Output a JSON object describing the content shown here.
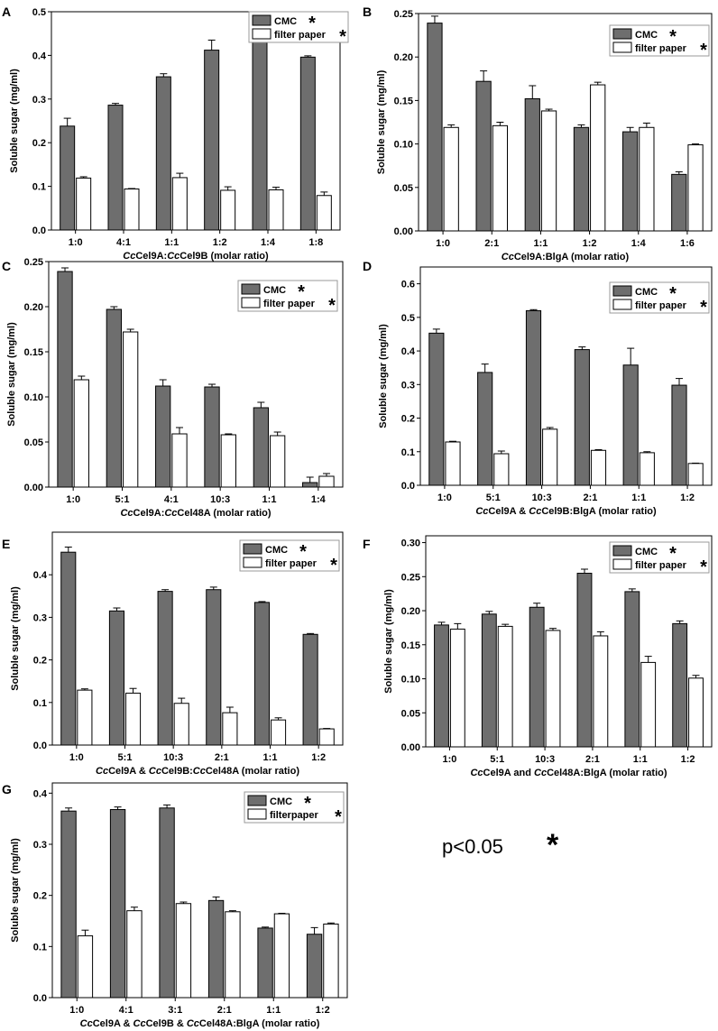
{
  "colors": {
    "cmc": "#6e6e6e",
    "filter": "#ffffff",
    "axis": "#000000"
  },
  "note": {
    "text": "p<0.05",
    "star": "*"
  },
  "chart_data": [
    {
      "panel": "A",
      "type": "bar",
      "categories": [
        "1:0",
        "4:1",
        "1:1",
        "1:2",
        "1:4",
        "1:8"
      ],
      "series": [
        {
          "name": "CMC",
          "marker": "*",
          "values": [
            0.238,
            0.286,
            0.351,
            0.412,
            0.456,
            0.396
          ],
          "errors": [
            0.018,
            0.004,
            0.007,
            0.023,
            0.002,
            0.003
          ]
        },
        {
          "name": "filter paper",
          "marker": "*",
          "values": [
            0.119,
            0.094,
            0.12,
            0.091,
            0.092,
            0.079
          ],
          "errors": [
            0.003,
            0.001,
            0.01,
            0.008,
            0.006,
            0.008
          ]
        }
      ],
      "xlabel_parts": [
        {
          "t": "Cc",
          "i": true
        },
        {
          "t": "Cel9A:",
          "i": false
        },
        {
          "t": "Cc",
          "i": true
        },
        {
          "t": "Cel9B (molar ratio)",
          "i": false
        }
      ],
      "ylabel": "Soluble sugar (mg/ml)",
      "ylim": [
        0,
        0.5
      ],
      "yticks": [
        "0.0",
        "0.1",
        "0.2",
        "0.3",
        "0.4",
        "0.5"
      ],
      "legend_position": "top-right"
    },
    {
      "panel": "B",
      "type": "bar",
      "categories": [
        "1:0",
        "2:1",
        "1:1",
        "1:2",
        "1:4",
        "1:6"
      ],
      "series": [
        {
          "name": "CMC",
          "marker": "*",
          "values": [
            0.239,
            0.172,
            0.152,
            0.119,
            0.114,
            0.065
          ],
          "errors": [
            0.008,
            0.012,
            0.015,
            0.003,
            0.005,
            0.003
          ]
        },
        {
          "name": "filter paper",
          "marker": "*",
          "values": [
            0.119,
            0.121,
            0.138,
            0.168,
            0.119,
            0.099
          ],
          "errors": [
            0.003,
            0.004,
            0.002,
            0.003,
            0.005,
            0.001
          ]
        }
      ],
      "xlabel_parts": [
        {
          "t": "Cc",
          "i": true
        },
        {
          "t": "Cel9A:BlgA (molar ratio)",
          "i": false
        }
      ],
      "ylabel": "Soluble sugar (mg/ml)",
      "ylim": [
        0,
        0.25
      ],
      "yticks": [
        "0.00",
        "0.05",
        "0.10",
        "0.15",
        "0.20",
        "0.25"
      ],
      "legend_position": "top-right"
    },
    {
      "panel": "C",
      "type": "bar",
      "categories": [
        "1:0",
        "5:1",
        "4:1",
        "10:3",
        "1:1",
        "1:4"
      ],
      "series": [
        {
          "name": "CMC",
          "marker": "*",
          "values": [
            0.239,
            0.197,
            0.112,
            0.111,
            0.088,
            0.005
          ],
          "errors": [
            0.004,
            0.003,
            0.007,
            0.003,
            0.006,
            0.006
          ]
        },
        {
          "name": "filter paper",
          "marker": "*",
          "values": [
            0.119,
            0.172,
            0.059,
            0.058,
            0.057,
            0.012
          ],
          "errors": [
            0.004,
            0.003,
            0.007,
            0.001,
            0.004,
            0.003
          ]
        }
      ],
      "xlabel_parts": [
        {
          "t": "Cc",
          "i": true
        },
        {
          "t": "Cel9A:",
          "i": false
        },
        {
          "t": "Cc",
          "i": true
        },
        {
          "t": "Cel48A (molar ratio)",
          "i": false
        }
      ],
      "ylabel": "Soluble sugar (mg/ml)",
      "ylim": [
        0,
        0.25
      ],
      "yticks": [
        "0.00",
        "0.05",
        "0.10",
        "0.15",
        "0.20",
        "0.25"
      ],
      "legend_position": "top-right"
    },
    {
      "panel": "D",
      "type": "bar",
      "categories": [
        "1:0",
        "5:1",
        "10:3",
        "2:1",
        "1:1",
        "1:2"
      ],
      "series": [
        {
          "name": "CMC",
          "marker": "*",
          "values": [
            0.453,
            0.336,
            0.52,
            0.404,
            0.358,
            0.298
          ],
          "errors": [
            0.012,
            0.025,
            0.003,
            0.008,
            0.05,
            0.02
          ]
        },
        {
          "name": "filter paper",
          "marker": "*",
          "values": [
            0.129,
            0.094,
            0.167,
            0.104,
            0.097,
            0.065
          ],
          "errors": [
            0.002,
            0.008,
            0.005,
            0.002,
            0.003,
            0.001
          ]
        }
      ],
      "xlabel_parts": [
        {
          "t": "Cc",
          "i": true
        },
        {
          "t": "Cel9A & ",
          "i": false
        },
        {
          "t": "Cc",
          "i": true
        },
        {
          "t": "Cel9B:BlgA (molar ratio)",
          "i": false
        }
      ],
      "ylabel": "Soluble sugar (mg/ml)",
      "ylim": [
        0,
        0.65
      ],
      "yticks": [
        "0.0",
        "0.1",
        "0.2",
        "0.3",
        "0.4",
        "0.5",
        "0.6"
      ],
      "legend_position": "top-right"
    },
    {
      "panel": "E",
      "type": "bar",
      "categories": [
        "1:0",
        "5:1",
        "10:3",
        "2:1",
        "1:1",
        "1:2"
      ],
      "series": [
        {
          "name": "CMC",
          "marker": "*",
          "values": [
            0.453,
            0.315,
            0.361,
            0.365,
            0.335,
            0.26
          ],
          "errors": [
            0.012,
            0.007,
            0.004,
            0.006,
            0.002,
            0.002
          ]
        },
        {
          "name": "filter paper",
          "marker": "*",
          "values": [
            0.129,
            0.122,
            0.098,
            0.076,
            0.059,
            0.038
          ],
          "errors": [
            0.003,
            0.011,
            0.012,
            0.013,
            0.005,
            0.001
          ]
        }
      ],
      "xlabel_parts": [
        {
          "t": "Cc",
          "i": true
        },
        {
          "t": "Cel9A & ",
          "i": false
        },
        {
          "t": "Cc",
          "i": true
        },
        {
          "t": "Cel9B:",
          "i": false
        },
        {
          "t": "Cc",
          "i": true
        },
        {
          "t": "Cel48A (molar ratio)",
          "i": false
        }
      ],
      "ylabel": "Soluble sugar (mg/ml)",
      "ylim": [
        0,
        0.5
      ],
      "yticks": [
        "0.0",
        "0.1",
        "0.2",
        "0.3",
        "0.4"
      ],
      "legend_position": "top-right"
    },
    {
      "panel": "F",
      "type": "bar",
      "categories": [
        "1:0",
        "5:1",
        "10:3",
        "2:1",
        "1:1",
        "1:2"
      ],
      "series": [
        {
          "name": "CMC",
          "marker": "*",
          "values": [
            0.179,
            0.195,
            0.205,
            0.255,
            0.228,
            0.181
          ],
          "errors": [
            0.004,
            0.004,
            0.006,
            0.006,
            0.004,
            0.004
          ]
        },
        {
          "name": "filter paper",
          "marker": "*",
          "values": [
            0.173,
            0.177,
            0.171,
            0.163,
            0.124,
            0.101
          ],
          "errors": [
            0.008,
            0.003,
            0.003,
            0.006,
            0.009,
            0.004
          ]
        }
      ],
      "xlabel_parts": [
        {
          "t": "Cc",
          "i": true
        },
        {
          "t": "Cel9A and ",
          "i": false
        },
        {
          "t": "Cc",
          "i": true
        },
        {
          "t": "Cel48A:BlgA (molar ratio)",
          "i": false
        }
      ],
      "ylabel": "Soluble sugar (mg/ml)",
      "ylim": [
        0,
        0.31
      ],
      "yticks": [
        "0.00",
        "0.05",
        "0.10",
        "0.15",
        "0.20",
        "0.25",
        "0.30"
      ],
      "legend_position": "top-right"
    },
    {
      "panel": "G",
      "type": "bar",
      "categories": [
        "1:0",
        "4:1",
        "3:1",
        "2:1",
        "1:1",
        "1:2"
      ],
      "series": [
        {
          "name": "CMC",
          "marker": "*",
          "values": [
            0.365,
            0.368,
            0.371,
            0.19,
            0.136,
            0.124
          ],
          "errors": [
            0.006,
            0.005,
            0.006,
            0.007,
            0.002,
            0.013
          ]
        },
        {
          "name": "filterpaper",
          "marker": "*",
          "values": [
            0.121,
            0.17,
            0.184,
            0.168,
            0.164,
            0.144
          ],
          "errors": [
            0.011,
            0.007,
            0.003,
            0.002,
            0.001,
            0.002
          ]
        }
      ],
      "xlabel_parts": [
        {
          "t": "Cc",
          "i": true
        },
        {
          "t": "Cel9A & ",
          "i": false
        },
        {
          "t": "Cc",
          "i": true
        },
        {
          "t": "Cel9B & ",
          "i": false
        },
        {
          "t": "Cc",
          "i": true
        },
        {
          "t": "Cel48A:BlgA (molar ratio)",
          "i": false
        }
      ],
      "ylabel": "Soluble sugar (mg/ml)",
      "ylim": [
        0,
        0.42
      ],
      "yticks": [
        "0.0",
        "0.1",
        "0.2",
        "0.3",
        "0.4"
      ],
      "legend_position": "top-right"
    }
  ]
}
